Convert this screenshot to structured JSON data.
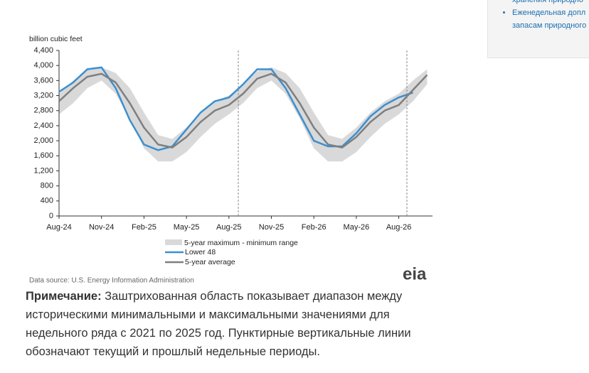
{
  "sidebar": {
    "links": [
      "хранения природно",
      "Еженедельная допл",
      "запасам природного"
    ]
  },
  "chart_data": {
    "type": "line",
    "y_label": "billion cubic feet",
    "categories": [
      "Aug-24",
      null,
      null,
      "Nov-24",
      null,
      null,
      "Feb-25",
      null,
      null,
      "May-25",
      null,
      null,
      "Aug-25",
      null,
      null,
      "Nov-25",
      null,
      null,
      "Feb-26",
      null,
      null,
      "May-26",
      null,
      null,
      "Aug-26",
      null,
      null
    ],
    "band": {
      "name": "5-year maximum - minimum range",
      "color": "#d9d9d9",
      "upper": [
        3250,
        3600,
        3900,
        3950,
        3800,
        3400,
        2750,
        2150,
        2050,
        2350,
        2750,
        3050,
        3200,
        3500,
        3850,
        3950,
        3800,
        3400,
        2750,
        2150,
        2050,
        2350,
        2750,
        3050,
        3250,
        3600,
        3900
      ],
      "lower": [
        2700,
        3000,
        3400,
        3600,
        3250,
        2600,
        1800,
        1450,
        1450,
        1700,
        2100,
        2450,
        2700,
        3000,
        3400,
        3600,
        3250,
        2600,
        1800,
        1450,
        1450,
        1700,
        2100,
        2450,
        2700,
        3050,
        3500
      ]
    },
    "series": [
      {
        "name": "Lower 48",
        "color": "#3c8fcf",
        "values": [
          3300,
          3550,
          3900,
          3950,
          3400,
          2550,
          1900,
          1750,
          1850,
          2300,
          2750,
          3050,
          3150,
          3500,
          3900,
          3900,
          3400,
          2700,
          2000,
          1850,
          1850,
          2200,
          2650,
          2950,
          3150,
          3280,
          null
        ]
      },
      {
        "name": "5-year average",
        "color": "#7f7f7f",
        "values": [
          3050,
          3400,
          3700,
          3780,
          3550,
          3000,
          2350,
          1900,
          1820,
          2100,
          2500,
          2800,
          2950,
          3250,
          3650,
          3780,
          3550,
          3000,
          2350,
          1900,
          1820,
          2100,
          2500,
          2800,
          2950,
          3350,
          3750
        ]
      }
    ],
    "ylim": [
      0,
      4400
    ],
    "yticks": [
      0,
      400,
      800,
      {
        "value": 1200,
        "label": "1,200"
      },
      {
        "value": 1600,
        "label": "1,600"
      },
      {
        "value": 2000,
        "label": "2,000"
      },
      {
        "value": 2400,
        "label": "2,400"
      },
      {
        "value": 2800,
        "label": "2,800"
      },
      {
        "value": 3200,
        "label": "3,200"
      },
      {
        "value": 3600,
        "label": "3,600"
      },
      {
        "value": 4000,
        "label": "4,000"
      },
      {
        "value": 4400,
        "label": "4,400"
      }
    ],
    "grid": false,
    "source": "Data source: U.S. Energy Information Administration",
    "logo": "eia"
  },
  "note": {
    "label": "Примечание:",
    "text": " Заштрихованная область показывает диапазон между историческими минимальными и максимальными значениями для недельного ряда с 2021 по 2025 год. Пунктирные вертикальные линии обозначают текущий и прошлый недельные периоды."
  }
}
